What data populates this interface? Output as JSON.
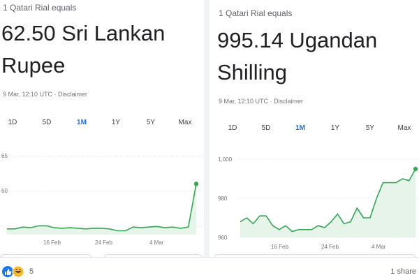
{
  "left": {
    "subtitle": "1 Qatari Rial equals",
    "rate_line1": "62.50 Sri Lankan",
    "rate_line2": "Rupee",
    "meta": "9 Mar, 12:10 UTC · Disclaimer",
    "tabs": [
      "1D",
      "5D",
      "1M",
      "1Y",
      "5Y",
      "Max"
    ],
    "active_tab": "1M",
    "y_tick_labels": [
      "65",
      "60"
    ],
    "x_tick_labels": [
      "16 Feb",
      "24 Feb",
      "4 Mar"
    ]
  },
  "right": {
    "subtitle": "1 Qatari Rial equals",
    "rate_line1": "995.14 Ugandan",
    "rate_line2": "Shilling",
    "meta": "9 Mar, 12:10 UTC · Disclaimer",
    "tabs": [
      "1D",
      "5D",
      "1M",
      "1Y",
      "5Y",
      "Max"
    ],
    "active_tab": "1M",
    "y_tick_labels": [
      "1,000",
      "980",
      "960"
    ],
    "x_tick_labels": [
      "16 Feb",
      "24 Feb",
      "4 Mar"
    ]
  },
  "bottom": {
    "reaction_count": "5",
    "shares_text": "1 share"
  },
  "colors": {
    "line": "#34a853",
    "fill": "#e6f4ea",
    "accent": "#1a73e8"
  },
  "chart_data": [
    {
      "type": "area",
      "x_ticks": [
        "16 Feb",
        "24 Feb",
        "4 Mar"
      ],
      "y_ticks": [
        65,
        60
      ],
      "ylim": [
        54.5,
        66.5
      ],
      "values": [
        55.2,
        55.2,
        55.5,
        55.4,
        55.7,
        55.7,
        55.4,
        55.3,
        55.4,
        55.3,
        55.2,
        55.3,
        55.3,
        55.2,
        54.9,
        54.9,
        55.5,
        55.4,
        55.5,
        55.6,
        55.4,
        55.5,
        55.3,
        55.5,
        62.5
      ]
    },
    {
      "type": "area",
      "x_ticks": [
        "16 Feb",
        "24 Feb",
        "4 Mar"
      ],
      "y_ticks": [
        1000,
        980,
        960
      ],
      "ylim": [
        960,
        1000
      ],
      "values": [
        968,
        970,
        967,
        971,
        971,
        966,
        964,
        966,
        963,
        964,
        964,
        964,
        966,
        965,
        968,
        972,
        967,
        968,
        975,
        970,
        970,
        980,
        988,
        988,
        988,
        990,
        989,
        995
      ]
    }
  ]
}
